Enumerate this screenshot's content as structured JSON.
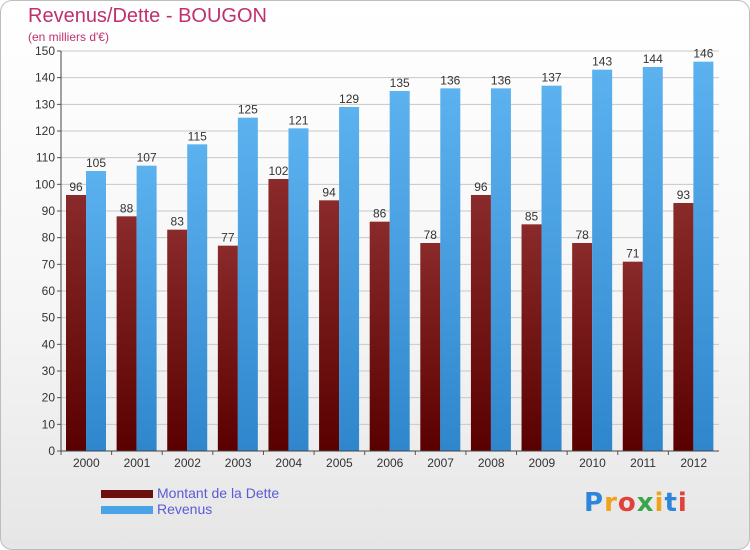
{
  "header": {
    "title": "Revenus/Dette - BOUGON",
    "subtitle": "(en milliers d'€)"
  },
  "chart_data": {
    "type": "bar",
    "title": "Revenus/Dette - BOUGON",
    "ylabel": "(en milliers d'€)",
    "xlabel": "",
    "ylim": [
      0,
      150
    ],
    "ytick_step": 10,
    "grid": true,
    "categories": [
      "2000",
      "2001",
      "2002",
      "2003",
      "2004",
      "2005",
      "2006",
      "2007",
      "2008",
      "2009",
      "2010",
      "2011",
      "2012"
    ],
    "series": [
      {
        "name": "Montant de la Dette",
        "color": "#7a1a1a",
        "values": [
          96,
          88,
          83,
          77,
          102,
          94,
          86,
          78,
          96,
          85,
          78,
          71,
          93
        ]
      },
      {
        "name": "Revenus",
        "color": "#4aa3e6",
        "values": [
          105,
          107,
          115,
          125,
          121,
          129,
          135,
          136,
          136,
          137,
          143,
          144,
          146
        ]
      }
    ],
    "legend_position": "bottom-left"
  },
  "legend": {
    "items": [
      {
        "label": "Montant de la Dette",
        "color": "#6b0f0f"
      },
      {
        "label": "Revenus",
        "color": "#4aa3e6"
      }
    ]
  },
  "logo": {
    "letters": [
      "P",
      "r",
      "o",
      "x",
      "i",
      "t",
      "i"
    ],
    "colors": [
      "#2e86d9",
      "#f0a21b",
      "#e2413a",
      "#3aa64a",
      "#f0a21b",
      "#2e86d9",
      "#e2413a"
    ]
  }
}
